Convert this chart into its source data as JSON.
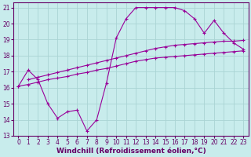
{
  "xlabel": "Windchill (Refroidissement éolien,°C)",
  "background_color": "#c8ecec",
  "grid_color": "#aad4d4",
  "line_color": "#990099",
  "xlim": [
    -0.5,
    23.5
  ],
  "ylim": [
    13,
    21.3
  ],
  "xticks": [
    0,
    1,
    2,
    3,
    4,
    5,
    6,
    7,
    8,
    9,
    10,
    11,
    12,
    13,
    14,
    15,
    16,
    17,
    18,
    19,
    20,
    21,
    22,
    23
  ],
  "yticks": [
    13,
    14,
    15,
    16,
    17,
    18,
    19,
    20,
    21
  ],
  "line1_x": [
    0,
    1,
    2,
    3,
    4,
    5,
    6,
    7,
    8,
    9,
    10,
    11,
    12,
    13,
    14,
    15,
    16,
    17,
    18,
    19,
    20,
    21,
    22,
    23
  ],
  "line1_y": [
    16.1,
    16.2,
    16.35,
    16.5,
    16.6,
    16.7,
    16.85,
    16.95,
    17.1,
    17.2,
    17.35,
    17.5,
    17.65,
    17.75,
    17.85,
    17.9,
    17.95,
    18.0,
    18.05,
    18.1,
    18.15,
    18.2,
    18.25,
    18.3
  ],
  "line2_x": [
    1,
    2,
    3,
    4,
    5,
    6,
    7,
    8,
    9,
    10,
    11,
    12,
    13,
    14,
    15,
    16,
    17,
    18,
    19,
    20,
    21,
    22,
    23
  ],
  "line2_y": [
    16.5,
    16.65,
    16.8,
    16.95,
    17.1,
    17.25,
    17.4,
    17.55,
    17.7,
    17.85,
    18.0,
    18.15,
    18.3,
    18.45,
    18.55,
    18.65,
    18.7,
    18.75,
    18.8,
    18.85,
    18.9,
    18.9,
    18.95
  ],
  "line3_x": [
    0,
    1,
    2,
    3,
    4,
    5,
    6,
    7,
    8,
    9,
    10,
    11,
    12,
    13,
    14,
    15,
    16,
    17,
    18,
    19,
    20,
    21,
    22,
    23
  ],
  "line3_y": [
    16.1,
    17.1,
    16.5,
    15.0,
    14.1,
    14.5,
    14.6,
    13.3,
    14.0,
    16.3,
    19.1,
    20.3,
    21.0,
    21.0,
    21.0,
    21.0,
    21.0,
    20.8,
    20.3,
    19.4,
    20.2,
    19.4,
    18.8,
    18.4
  ],
  "tick_fontsize": 5.5,
  "xlabel_fontsize": 6.5
}
